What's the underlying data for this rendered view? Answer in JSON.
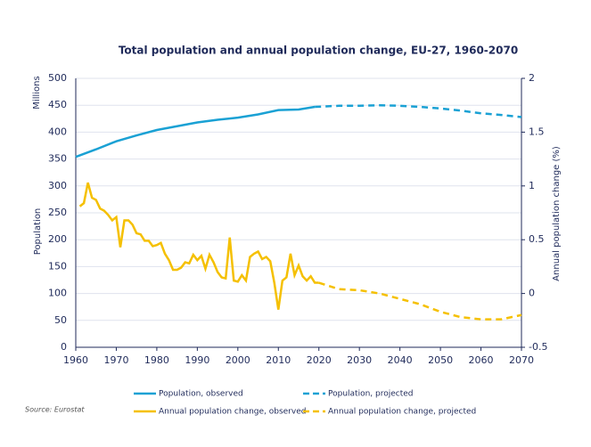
{
  "chart_data": {
    "type": "line",
    "title": "Total population and annual population change, EU-27, 1960-2070",
    "y_unit_label": "Millions",
    "ylabel": "Population",
    "y2label": "Annual population change (%)",
    "source": "Source: Eurostat",
    "xlim": [
      1960,
      2070
    ],
    "xticks": [
      1960,
      1970,
      1980,
      1990,
      2000,
      2010,
      2020,
      2030,
      2040,
      2050,
      2060,
      2070
    ],
    "ylim": [
      0,
      500
    ],
    "yticks": [
      0,
      50,
      100,
      150,
      200,
      250,
      300,
      350,
      400,
      450,
      500
    ],
    "y2lim": [
      -0.5,
      2
    ],
    "y2ticks": [
      -0.5,
      0,
      0.5,
      1,
      1.5,
      2
    ],
    "grid": true,
    "series": [
      {
        "name": "Population, observed",
        "color": "#1aa1d4",
        "dashed": false,
        "x": [
          1960,
          1965,
          1970,
          1975,
          1980,
          1985,
          1990,
          1995,
          2000,
          2005,
          2010,
          2015,
          2019
        ],
        "values": [
          354,
          368,
          383,
          394,
          404,
          411,
          418,
          423,
          427,
          433,
          441,
          442,
          447
        ]
      },
      {
        "name": "Population, projected",
        "color": "#1aa1d4",
        "dashed": true,
        "x": [
          2019,
          2025,
          2030,
          2035,
          2040,
          2045,
          2050,
          2055,
          2060,
          2065,
          2070
        ],
        "values": [
          447,
          449,
          449,
          450,
          449,
          447,
          444,
          440,
          435,
          432,
          428
        ]
      },
      {
        "name": "Annual population change, observed",
        "color": "#f5c000",
        "dashed": false,
        "axis": "y2",
        "x": [
          1961,
          1962,
          1963,
          1964,
          1965,
          1966,
          1967,
          1968,
          1969,
          1970,
          1971,
          1972,
          1973,
          1974,
          1975,
          1976,
          1977,
          1978,
          1979,
          1980,
          1981,
          1982,
          1983,
          1984,
          1985,
          1986,
          1987,
          1988,
          1989,
          1990,
          1991,
          1992,
          1993,
          1994,
          1995,
          1996,
          1997,
          1998,
          1999,
          2000,
          2001,
          2002,
          2003,
          2004,
          2005,
          2006,
          2007,
          2008,
          2009,
          2010,
          2011,
          2012,
          2013,
          2014,
          2015,
          2016,
          2017,
          2018,
          2019,
          2020
        ],
        "values": [
          0.81,
          0.84,
          1.03,
          0.89,
          0.87,
          0.79,
          0.77,
          0.73,
          0.68,
          0.71,
          0.43,
          0.68,
          0.68,
          0.64,
          0.56,
          0.55,
          0.49,
          0.49,
          0.44,
          0.45,
          0.47,
          0.37,
          0.31,
          0.22,
          0.22,
          0.24,
          0.29,
          0.28,
          0.36,
          0.31,
          0.35,
          0.23,
          0.36,
          0.29,
          0.2,
          0.15,
          0.14,
          0.52,
          0.12,
          0.11,
          0.17,
          0.12,
          0.34,
          0.37,
          0.39,
          0.32,
          0.34,
          0.3,
          0.1,
          -0.15,
          0.12,
          0.15,
          0.37,
          0.17,
          0.26,
          0.16,
          0.12,
          0.16,
          0.1,
          0.1
        ]
      },
      {
        "name": "Annual population change, projected",
        "color": "#f5c000",
        "dashed": true,
        "axis": "y2",
        "x": [
          2020,
          2025,
          2030,
          2035,
          2040,
          2045,
          2050,
          2055,
          2060,
          2065,
          2070
        ],
        "values": [
          0.1,
          0.04,
          0.03,
          0.0,
          -0.05,
          -0.1,
          -0.17,
          -0.22,
          -0.24,
          -0.24,
          -0.2
        ]
      }
    ]
  }
}
